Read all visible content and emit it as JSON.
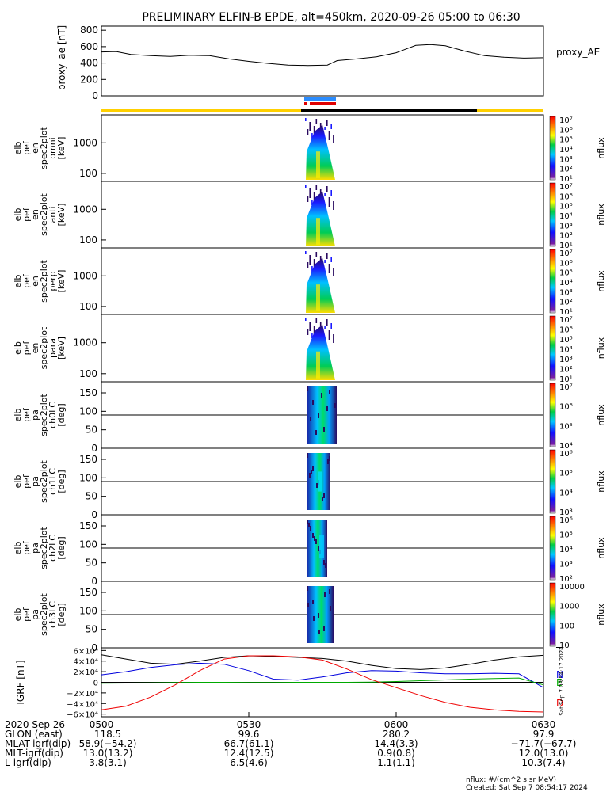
{
  "title": "PRELIMINARY ELFIN-B EPDE, alt=450km, 2020-09-26 05:00 to 06:30",
  "colors": {
    "bar_yellow": "#ffd000",
    "bar_black": "#000000",
    "bar_blue": "#2a8cff",
    "bar_red": "#e00000",
    "trace_black": "#000000",
    "trace_blue": "#0000dd",
    "trace_green": "#00aa00",
    "trace_red": "#ee0000"
  },
  "chart_data": [
    {
      "type": "line",
      "id": "proxy_ae",
      "ylabel": "proxy_ae [nT]",
      "legend": "proxy_AE",
      "yticks": [
        "800",
        "600",
        "400",
        "200",
        "0"
      ],
      "ylim": [
        0,
        850
      ],
      "x_minutes": [
        0,
        3,
        6,
        10,
        14,
        18,
        22,
        26,
        30,
        34,
        38,
        42,
        46,
        48,
        52,
        56,
        60,
        64,
        67,
        70,
        74,
        78,
        82,
        86,
        90
      ],
      "y": [
        535,
        540,
        505,
        490,
        480,
        495,
        490,
        450,
        420,
        395,
        375,
        370,
        375,
        430,
        450,
        475,
        525,
        615,
        625,
        610,
        545,
        490,
        470,
        460,
        465
      ]
    },
    {
      "type": "heatmap",
      "id": "omni",
      "ylabel_lines": [
        "elb",
        "pef",
        "en",
        "spec2plot",
        "omni",
        "[keV]"
      ],
      "yticks": [
        "1000",
        "100"
      ],
      "cb_ticks": [
        "10⁷",
        "10⁶",
        "10⁵",
        "10⁴",
        "10³",
        "10²",
        "10¹"
      ],
      "cb_label": "nflux"
    },
    {
      "type": "heatmap",
      "id": "anti",
      "ylabel_lines": [
        "elb",
        "pef",
        "en",
        "spec2plot",
        "anti",
        "[keV]"
      ],
      "yticks": [
        "1000",
        "100"
      ],
      "cb_ticks": [
        "10⁷",
        "10⁶",
        "10⁵",
        "10⁴",
        "10³",
        "10²",
        "10¹"
      ],
      "cb_label": "nflux"
    },
    {
      "type": "heatmap",
      "id": "perp",
      "ylabel_lines": [
        "elb",
        "pef",
        "en",
        "spec2plot",
        "perp",
        "[keV]"
      ],
      "yticks": [
        "1000",
        "100"
      ],
      "cb_ticks": [
        "10⁷",
        "10⁶",
        "10⁵",
        "10⁴",
        "10³",
        "10²",
        "10¹"
      ],
      "cb_label": "nflux"
    },
    {
      "type": "heatmap",
      "id": "para",
      "ylabel_lines": [
        "elb",
        "pef",
        "en",
        "spec2plot",
        "para",
        "[keV]"
      ],
      "yticks": [
        "1000",
        "100"
      ],
      "cb_ticks": [
        "10⁷",
        "10⁶",
        "10⁵",
        "10⁴",
        "10³",
        "10²",
        "10¹"
      ],
      "cb_label": "nflux"
    },
    {
      "type": "heatmap",
      "id": "ch0",
      "ylabel_lines": [
        "elb",
        "pef",
        "pa",
        "spec2plot",
        "ch0LC",
        "[deg]"
      ],
      "yticks": [
        "150",
        "100",
        "50",
        "0"
      ],
      "cb_ticks": [
        "10⁷",
        "10⁶",
        "10⁵",
        "10⁴"
      ],
      "cb_label": "nflux"
    },
    {
      "type": "heatmap",
      "id": "ch1",
      "ylabel_lines": [
        "elb",
        "pef",
        "pa",
        "spec2plot",
        "ch1LC",
        "[deg]"
      ],
      "yticks": [
        "150",
        "100",
        "50",
        "0"
      ],
      "cb_ticks": [
        "10⁶",
        "10⁵",
        "10⁴",
        "10³"
      ],
      "cb_label": "nflux"
    },
    {
      "type": "heatmap",
      "id": "ch2",
      "ylabel_lines": [
        "elb",
        "pef",
        "pa",
        "spec2plot",
        "ch2LC",
        "[deg]"
      ],
      "yticks": [
        "150",
        "100",
        "50",
        "0"
      ],
      "cb_ticks": [
        "10⁶",
        "10⁵",
        "10⁴",
        "10³",
        "10²"
      ],
      "cb_label": "nflux"
    },
    {
      "type": "heatmap",
      "id": "ch3",
      "ylabel_lines": [
        "elb",
        "pef",
        "pa",
        "spec2plot",
        "ch3LC",
        "[deg]"
      ],
      "yticks": [
        "150",
        "100",
        "50",
        "0"
      ],
      "cb_ticks": [
        "10000",
        "1000",
        "100",
        "10"
      ],
      "cb_label": "nflux"
    },
    {
      "type": "line",
      "id": "igrf",
      "ylabel": "IGRF [nT]",
      "yticks": [
        "6×10⁴",
        "4×10⁴",
        "2×10⁴",
        "0",
        "−2×10⁴",
        "−4×10⁴",
        "−6×10⁴"
      ],
      "ylim": [
        -65000,
        65000
      ],
      "side_labels": [
        "T",
        "N",
        "E",
        "D"
      ],
      "x_minutes": [
        0,
        5,
        10,
        15,
        20,
        25,
        30,
        35,
        40,
        45,
        50,
        55,
        60,
        65,
        70,
        75,
        80,
        85,
        90
      ],
      "series": [
        {
          "name": "T",
          "values": [
            52000,
            44000,
            36000,
            34000,
            40000,
            47000,
            50000,
            49000,
            47000,
            45000,
            40000,
            32000,
            26000,
            24000,
            27000,
            34000,
            42000,
            48000,
            51000
          ]
        },
        {
          "name": "N",
          "values": [
            14000,
            20000,
            28000,
            33000,
            36000,
            34000,
            22000,
            6000,
            4000,
            10000,
            18000,
            22000,
            21000,
            18000,
            16000,
            16000,
            17000,
            16000,
            -10000
          ]
        },
        {
          "name": "E",
          "values": [
            -2000,
            -1500,
            -1000,
            -500,
            0,
            0,
            -500,
            -500,
            0,
            0,
            0,
            500,
            1500,
            3000,
            4500,
            6000,
            7000,
            8000,
            -5000
          ]
        },
        {
          "name": "D",
          "values": [
            -52000,
            -45000,
            -28000,
            -5000,
            22000,
            44000,
            50000,
            50000,
            48000,
            42000,
            25000,
            5000,
            -10000,
            -25000,
            -38000,
            -47000,
            -52000,
            -55000,
            -56000
          ]
        }
      ]
    }
  ],
  "xaxis": {
    "tick_labels": [
      "0500",
      "0530",
      "0600",
      "0630"
    ],
    "rows": [
      {
        "label": "2020 Sep 26",
        "values": [
          "",
          "",
          "",
          ""
        ]
      },
      {
        "label": "GLON (east)",
        "values": [
          "118.5",
          "99.6",
          "280.2",
          "97.9"
        ]
      },
      {
        "label": "MLAT-igrf(dip)",
        "values": [
          "58.9(−54.2)",
          "66.7(61.1)",
          "14.4(3.3)",
          "−71.7(−67.7)"
        ]
      },
      {
        "label": "MLT-igrf(dip)",
        "values": [
          "13.0(13.2)",
          "12.4(12.5)",
          "0.9(0.8)",
          "12.0(13.0)"
        ]
      },
      {
        "label": "L-igrf(dip)",
        "values": [
          "3.8(3.1)",
          "6.5(4.6)",
          "1.1(1.1)",
          "10.3(7.4)"
        ]
      }
    ]
  },
  "footer": {
    "units": "nflux: #/(cm^2 s sr MeV)",
    "created": "Created: Sat Sep  7 08:54:17 2024",
    "side_stamp": "Sat Sep  7 08:54:17 2024"
  }
}
